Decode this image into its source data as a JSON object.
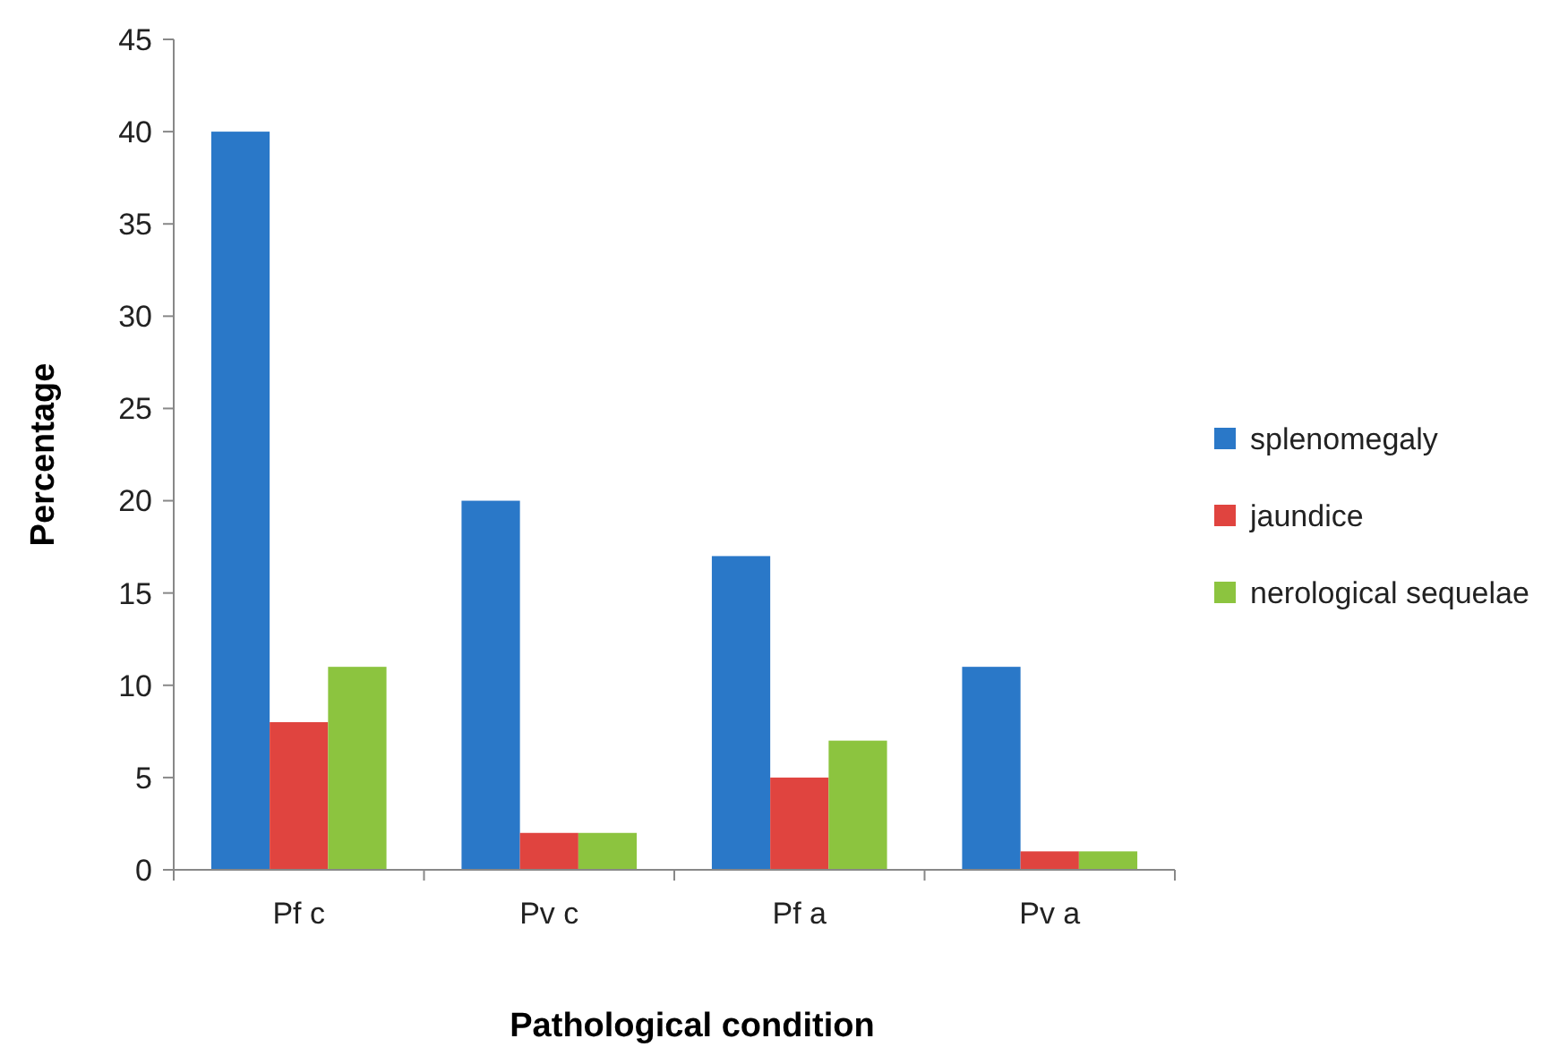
{
  "chart_data": {
    "type": "bar",
    "xlabel": "Pathological condition",
    "ylabel": "Percentage",
    "categories": [
      "Pf c",
      "Pv c",
      "Pf a",
      "Pv a"
    ],
    "series": [
      {
        "name": "splenomegaly",
        "color": "#2a78c8",
        "values": [
          40,
          20,
          17,
          11
        ]
      },
      {
        "name": "jaundice",
        "color": "#e0443f",
        "values": [
          8,
          2,
          5,
          1
        ]
      },
      {
        "name": "nerological sequelae",
        "color": "#8cc43f",
        "values": [
          11,
          2,
          7,
          1
        ]
      }
    ],
    "ylim": [
      0,
      45
    ],
    "yticks": [
      0,
      5,
      10,
      15,
      20,
      25,
      30,
      35,
      40,
      45
    ],
    "grid": false,
    "legend": "right"
  }
}
